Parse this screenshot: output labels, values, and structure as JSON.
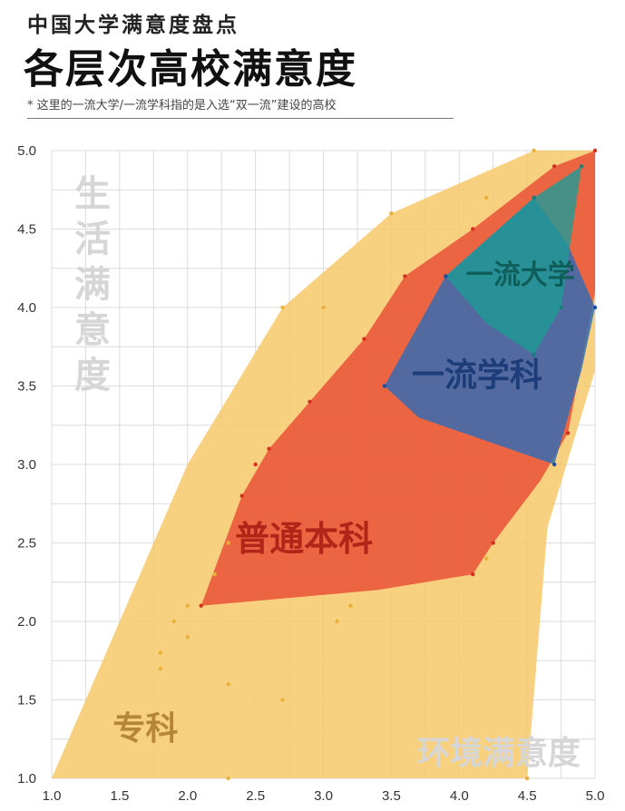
{
  "header": {
    "subtitle": "中国大学满意度盘点",
    "title": "各层次高校满意度",
    "note": "* 这里的一流大学/一流学科指的是入选“双一流”建设的高校"
  },
  "chart_data": {
    "type": "scatter",
    "xlim": [
      1.0,
      5.0
    ],
    "ylim": [
      1.0,
      5.0
    ],
    "x_ticks": [
      "1.0",
      "1.5",
      "2.0",
      "2.5",
      "3.0",
      "3.5",
      "4.0",
      "4.5",
      "5.0"
    ],
    "y_ticks": [
      "1.0",
      "1.5",
      "2.0",
      "2.5",
      "3.0",
      "3.5",
      "4.0",
      "4.5",
      "5.0"
    ],
    "xlabel": "环境满意度",
    "ylabel": "生活满意度",
    "grid": true,
    "series": [
      {
        "name": "专科",
        "color": "#f7c96a",
        "hull": [
          [
            1.0,
            1.0
          ],
          [
            2.0,
            3.0
          ],
          [
            2.7,
            4.0
          ],
          [
            3.5,
            4.6
          ],
          [
            4.55,
            5.0
          ],
          [
            5.0,
            5.0
          ],
          [
            5.0,
            3.6
          ],
          [
            4.65,
            2.6
          ],
          [
            4.5,
            1.0
          ]
        ],
        "points": [
          [
            1.8,
            1.8
          ],
          [
            1.8,
            1.7
          ],
          [
            1.9,
            2.0
          ],
          [
            2.0,
            2.1
          ],
          [
            2.0,
            1.9
          ],
          [
            2.2,
            2.3
          ],
          [
            2.3,
            1.6
          ],
          [
            2.3,
            1.0
          ],
          [
            2.3,
            2.5
          ],
          [
            2.7,
            1.5
          ],
          [
            2.7,
            4.0
          ],
          [
            3.0,
            4.0
          ],
          [
            3.1,
            2.0
          ],
          [
            3.2,
            2.1
          ],
          [
            3.5,
            4.6
          ],
          [
            4.2,
            4.7
          ],
          [
            4.2,
            2.4
          ],
          [
            4.5,
            1.0
          ],
          [
            4.55,
            5.0
          ]
        ]
      },
      {
        "name": "普通本科",
        "color": "#e9553a",
        "hull": [
          [
            2.1,
            2.1
          ],
          [
            2.4,
            2.8
          ],
          [
            2.6,
            3.1
          ],
          [
            2.9,
            3.4
          ],
          [
            3.3,
            3.8
          ],
          [
            3.6,
            4.2
          ],
          [
            4.1,
            4.5
          ],
          [
            4.7,
            4.9
          ],
          [
            5.0,
            5.0
          ],
          [
            5.0,
            4.1
          ],
          [
            4.8,
            3.2
          ],
          [
            4.6,
            2.9
          ],
          [
            4.25,
            2.5
          ],
          [
            4.1,
            2.3
          ],
          [
            3.4,
            2.2
          ]
        ],
        "points": [
          [
            2.1,
            2.1
          ],
          [
            2.4,
            2.8
          ],
          [
            2.5,
            3.0
          ],
          [
            2.6,
            3.1
          ],
          [
            2.9,
            3.4
          ],
          [
            3.3,
            3.8
          ],
          [
            3.6,
            4.2
          ],
          [
            4.1,
            4.5
          ],
          [
            4.7,
            4.9
          ],
          [
            5.0,
            5.0
          ],
          [
            4.8,
            3.2
          ],
          [
            4.25,
            2.5
          ],
          [
            4.1,
            2.3
          ]
        ]
      },
      {
        "name": "一流学科",
        "color": "#2f6bb3",
        "hull": [
          [
            3.45,
            3.5
          ],
          [
            3.9,
            4.2
          ],
          [
            4.55,
            4.7
          ],
          [
            4.8,
            4.4
          ],
          [
            5.0,
            4.0
          ],
          [
            4.9,
            3.6
          ],
          [
            4.7,
            3.0
          ],
          [
            3.7,
            3.3
          ]
        ],
        "points": [
          [
            3.45,
            3.5
          ],
          [
            3.9,
            4.2
          ],
          [
            4.55,
            4.7
          ],
          [
            5.0,
            4.0
          ],
          [
            4.7,
            3.0
          ]
        ]
      },
      {
        "name": "一流大学",
        "color": "#1e9b96",
        "hull": [
          [
            3.9,
            4.2
          ],
          [
            4.55,
            4.7
          ],
          [
            4.9,
            4.9
          ],
          [
            4.75,
            4.0
          ],
          [
            4.55,
            3.7
          ],
          [
            4.2,
            3.9
          ]
        ],
        "points": [
          [
            4.55,
            4.7
          ],
          [
            4.9,
            4.9
          ],
          [
            4.75,
            4.0
          ],
          [
            4.55,
            3.7
          ]
        ]
      }
    ]
  }
}
